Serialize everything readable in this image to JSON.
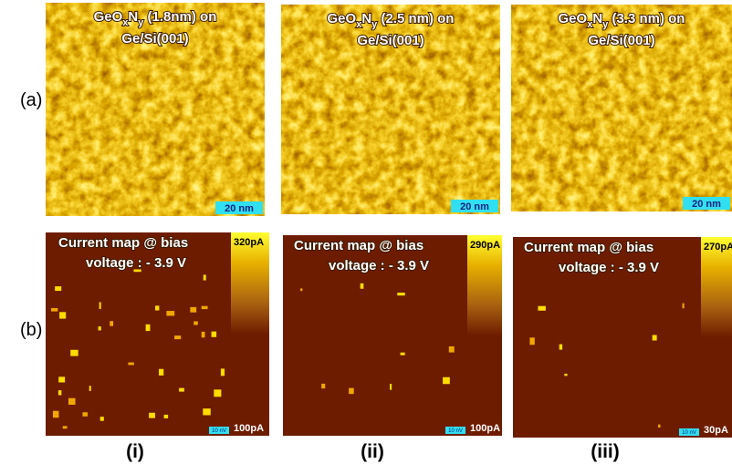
{
  "rows": {
    "a": "(a)",
    "b": "(b)"
  },
  "panels": [
    {
      "label": "(i)",
      "top": {
        "title": [
          "GeO",
          "x",
          "N",
          "y",
          " (1.8nm) on"
        ],
        "title_line2": "Ge/Si(001)",
        "scale_bar": "20 nm"
      },
      "bottom": {
        "title_line1": "Current map @ bias",
        "title_line2": "voltage : - 3.9 V",
        "scale_max": "320pA",
        "scale_min": "100pA",
        "scale_bar": "10 nV"
      }
    },
    {
      "label": "(ii)",
      "top": {
        "title": [
          "GeO",
          "x",
          "N",
          "y",
          " (2.5 nm) on"
        ],
        "title_line2": "Ge/Si(001)",
        "scale_bar": "20 nm"
      },
      "bottom": {
        "title_line1": "Current map @ bias",
        "title_line2": "voltage : - 3.9 V",
        "scale_max": "290pA",
        "scale_min": "100pA",
        "scale_bar": "10 nV"
      }
    },
    {
      "label": "(iii)",
      "top": {
        "title": [
          "GeO",
          "x",
          "N",
          "y",
          " (3.3 nm) on"
        ],
        "title_line2": "Ge/Si(001)",
        "scale_bar": "20 nm"
      },
      "bottom": {
        "title_line1": "Current map @ bias",
        "title_line2": "voltage : - 3.9 V",
        "scale_max": "270pA",
        "scale_min": "30pA",
        "scale_bar": "10 nV"
      }
    }
  ]
}
